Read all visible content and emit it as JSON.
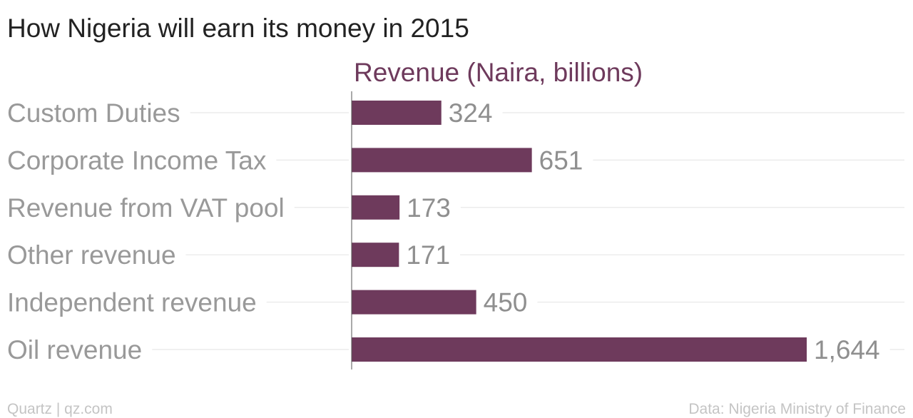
{
  "chart_data": {
    "type": "bar",
    "orientation": "horizontal",
    "title": "How Nigeria will earn its money in 2015",
    "series_header": "Revenue (Naira, billions)",
    "categories": [
      "Custom Duties",
      "Corporate Income Tax",
      "Revenue from VAT pool",
      "Other revenue",
      "Independent revenue",
      "Oil revenue"
    ],
    "values": [
      324,
      651,
      173,
      171,
      450,
      1644
    ],
    "value_labels": [
      "324",
      "651",
      "173",
      "171",
      "450",
      "1,644"
    ],
    "xlim": [
      0,
      1644
    ],
    "grid": true,
    "bar_color": "#6e3a5c"
  },
  "footer": {
    "source_left": "Quartz | qz.com",
    "source_right": "Data: Nigeria Ministry of Finance"
  },
  "colors": {
    "bar": "#6e3a5c",
    "header": "#6e3a5c",
    "category_text": "#999999",
    "value_text": "#8f8f8f",
    "footer_text": "#c4c4c4"
  }
}
